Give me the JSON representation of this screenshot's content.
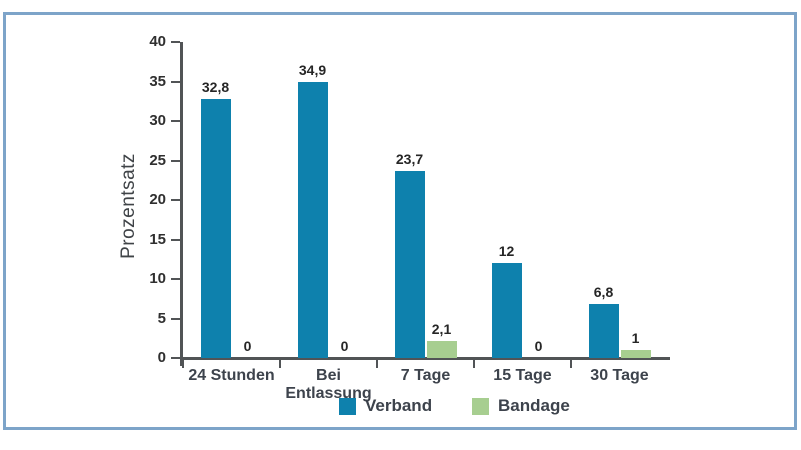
{
  "chart_data": {
    "type": "bar",
    "title": "",
    "ylabel": "Prozentsatz",
    "xlabel": "",
    "categories": [
      "24 Stunden",
      "Bei Entlassung",
      "7 Tage",
      "15 Tage",
      "30 Tage"
    ],
    "series": [
      {
        "name": "Verband",
        "color": "#0e81ad",
        "values": [
          32.8,
          34.9,
          23.7,
          12,
          6.8
        ],
        "labels": [
          "32,8",
          "34,9",
          "23,7",
          "12",
          "6,8"
        ]
      },
      {
        "name": "Bandage",
        "color": "#a7ce90",
        "values": [
          0,
          0,
          2.1,
          0,
          1
        ],
        "labels": [
          "0",
          "0",
          "2,1",
          "0",
          "1"
        ]
      }
    ],
    "ylim": [
      0,
      40
    ],
    "yticks": [
      0,
      5,
      10,
      15,
      20,
      25,
      30,
      35,
      40
    ],
    "grid": false,
    "legend_position": "bottom",
    "axis_color": "#515456",
    "panel_border_color": "#7da4c9"
  }
}
